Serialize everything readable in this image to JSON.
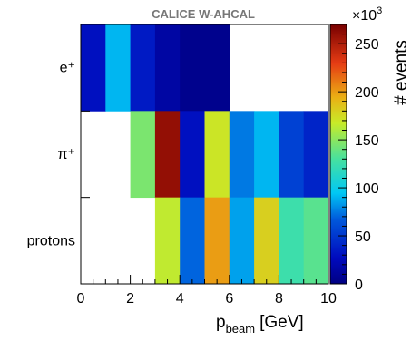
{
  "chart_data": {
    "type": "heatmap",
    "title": "CALICE W-AHCAL",
    "xlabel_main": "p",
    "xlabel_sub": "beam",
    "xlabel_unit": "[GeV]",
    "xlim": [
      0,
      10
    ],
    "xticks": [
      "0",
      "2",
      "4",
      "6",
      "8",
      "10"
    ],
    "rows": [
      "e⁺",
      "π⁺",
      "protons"
    ],
    "bin_edges": [
      0,
      1,
      2,
      3,
      4,
      5,
      6,
      7,
      8,
      9,
      10
    ],
    "values_thousands": [
      [
        30,
        90,
        35,
        15,
        5,
        5,
        null,
        null,
        null,
        null
      ],
      [
        null,
        null,
        145,
        260,
        30,
        170,
        75,
        90,
        55,
        40
      ],
      [
        null,
        null,
        null,
        165,
        70,
        200,
        85,
        180,
        125,
        135
      ]
    ],
    "colorbar": {
      "label": "# events",
      "multiplier": "×10",
      "exponent": "3",
      "range": [
        0,
        270
      ],
      "ticks": [
        "0",
        "50",
        "100",
        "150",
        "200",
        "250"
      ],
      "palette": "rainbow"
    }
  }
}
